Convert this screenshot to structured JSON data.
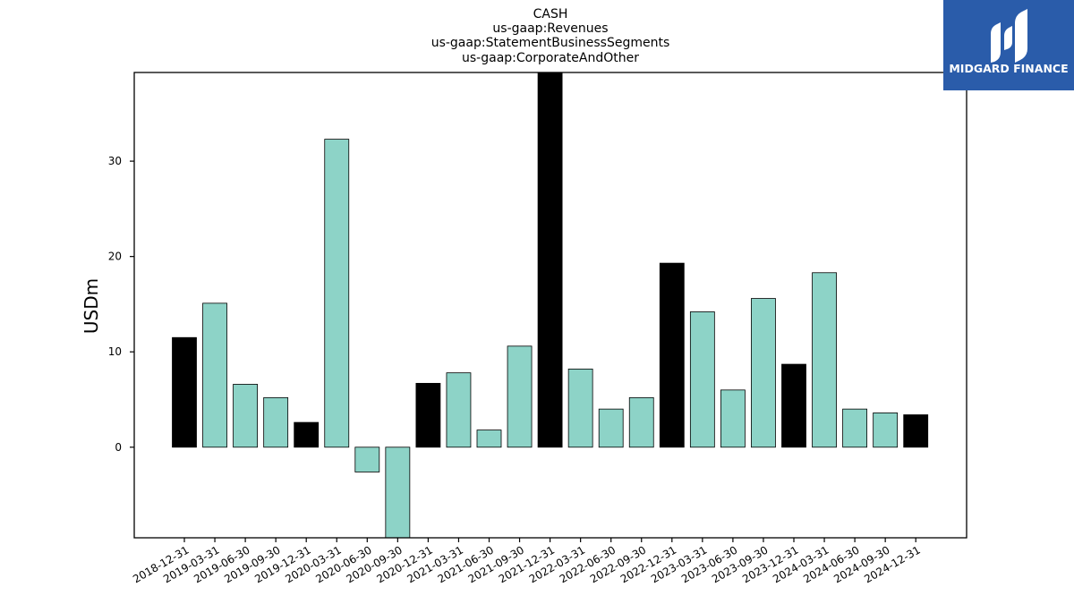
{
  "chart_data": {
    "type": "bar",
    "title_lines": [
      "CASH",
      "us-gaap:Revenues",
      "us-gaap:StatementBusinessSegments",
      "us-gaap:CorporateAndOther"
    ],
    "xlabel": "",
    "ylabel": "USDm",
    "ylim": [
      -9.5,
      39.3
    ],
    "yticks": [
      0,
      10,
      20,
      30
    ],
    "grid": false,
    "categories": [
      "2018-12-31",
      "2019-03-31",
      "2019-06-30",
      "2019-09-30",
      "2019-12-31",
      "2020-03-31",
      "2020-06-30",
      "2020-09-30",
      "2020-12-31",
      "2021-03-31",
      "2021-06-30",
      "2021-09-30",
      "2021-12-31",
      "2022-03-31",
      "2022-06-30",
      "2022-09-30",
      "2022-12-31",
      "2023-03-31",
      "2023-06-30",
      "2023-09-30",
      "2023-12-31",
      "2024-03-31",
      "2024-06-30",
      "2024-09-30",
      "2024-12-31"
    ],
    "values": [
      11.5,
      15.1,
      6.6,
      5.2,
      2.6,
      32.3,
      -2.6,
      -9.5,
      6.7,
      7.8,
      1.8,
      10.6,
      39.3,
      8.2,
      4.0,
      5.2,
      19.3,
      14.2,
      6.0,
      15.6,
      8.7,
      18.3,
      4.0,
      3.6,
      3.4
    ],
    "colors": {
      "quarter_bar": "#8dd3c7",
      "year_end_bar": "#000000",
      "bar_edge": "#000000"
    }
  },
  "logo": {
    "text": "MIDGARD FINANCE",
    "background": "#2a5caa"
  }
}
